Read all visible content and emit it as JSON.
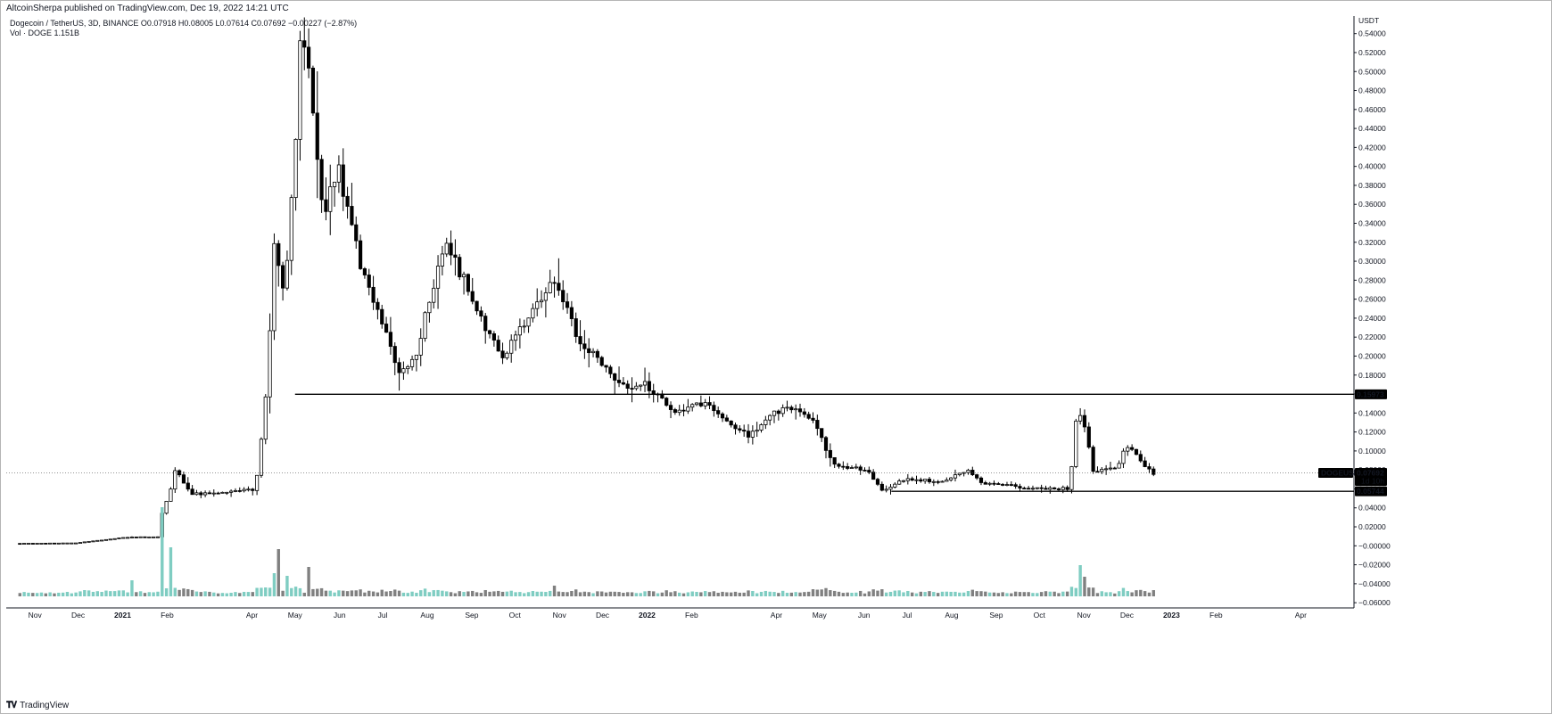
{
  "header": {
    "published": "AltcoinSherpa published on TradingView.com, Dec 19, 2022 14:21 UTC",
    "symbol_line": "Dogecoin / TetherUS, 3D, BINANCE  O0.07918 H0.08005 L0.07614 C0.07692 −0.00227 (−2.87%)",
    "volume_line": "Vol · DOGE  1.151B"
  },
  "footer": {
    "brand": "TradingView",
    "logo": "tradingview-logo"
  },
  "colors": {
    "up": "#ffffff",
    "down": "#000000",
    "vol_up": "#7fcdc2",
    "vol_down": "#808080",
    "line": "#000000"
  },
  "chart_data": {
    "type": "candlestick",
    "symbol": "DOGEUSDT",
    "unit": "USDT",
    "y_ticks": [
      "0.54000",
      "0.52000",
      "0.50000",
      "0.48000",
      "0.46000",
      "0.44000",
      "0.42000",
      "0.40000",
      "0.38000",
      "0.36000",
      "0.34000",
      "0.32000",
      "0.30000",
      "0.28000",
      "0.26000",
      "0.24000",
      "0.22000",
      "0.20000",
      "0.18000",
      "0.16000",
      "0.14000",
      "0.12000",
      "0.10000",
      "0.08000",
      "0.06000",
      "0.04000",
      "0.02000",
      "−0.00000",
      "−0.02000",
      "−0.04000",
      "−0.06000"
    ],
    "ylim": [
      -0.0655,
      0.5585
    ],
    "x_ticks": [
      "Nov",
      "Dec",
      "2021",
      "Feb",
      "Apr",
      "May",
      "Jun",
      "Jul",
      "Aug",
      "Sep",
      "Oct",
      "Nov",
      "Dec",
      "2022",
      "Feb",
      "Apr",
      "May",
      "Jun",
      "Jul",
      "Aug",
      "Sep",
      "Oct",
      "Nov",
      "Dec",
      "2023",
      "Feb",
      "Apr"
    ],
    "x_tick_dates": [
      "2020-11-01",
      "2020-12-01",
      "2021-01-01",
      "2021-02-01",
      "2021-04-01",
      "2021-05-01",
      "2021-06-01",
      "2021-07-01",
      "2021-08-01",
      "2021-09-01",
      "2021-10-01",
      "2021-11-01",
      "2021-12-01",
      "2022-01-01",
      "2022-02-01",
      "2022-04-01",
      "2022-05-01",
      "2022-06-01",
      "2022-07-01",
      "2022-08-01",
      "2022-09-01",
      "2022-10-01",
      "2022-11-01",
      "2022-12-01",
      "2023-01-01",
      "2023-02-01",
      "2023-04-01"
    ],
    "horizontal_levels": [
      {
        "label": "0.15973",
        "value": 0.15973,
        "from_date": "2021-05-01"
      },
      {
        "label": "0.05744",
        "value": 0.05744,
        "from_date": "2022-06-20"
      }
    ],
    "last_price": {
      "symbol": "DOGEUSDT",
      "value": "0.07692",
      "countdown": "1d 10h"
    },
    "anchors": [
      [
        "2020-10-20",
        0.0025
      ],
      [
        "2020-12-01",
        0.003
      ],
      [
        "2021-01-05",
        0.009
      ],
      [
        "2021-01-27",
        0.0095
      ],
      [
        "2021-01-29",
        0.03
      ],
      [
        "2021-02-05",
        0.06
      ],
      [
        "2021-02-08",
        0.08
      ],
      [
        "2021-02-20",
        0.055
      ],
      [
        "2021-03-10",
        0.055
      ],
      [
        "2021-04-05",
        0.06
      ],
      [
        "2021-04-14",
        0.18
      ],
      [
        "2021-04-17",
        0.32
      ],
      [
        "2021-04-25",
        0.26
      ],
      [
        "2021-05-02",
        0.4
      ],
      [
        "2021-05-07",
        0.56
      ],
      [
        "2021-05-14",
        0.48
      ],
      [
        "2021-05-22",
        0.35
      ],
      [
        "2021-06-01",
        0.4
      ],
      [
        "2021-06-18",
        0.29
      ],
      [
        "2021-06-30",
        0.24
      ],
      [
        "2021-07-15",
        0.18
      ],
      [
        "2021-07-25",
        0.2
      ],
      [
        "2021-08-15",
        0.32
      ],
      [
        "2021-08-25",
        0.29
      ],
      [
        "2021-09-08",
        0.24
      ],
      [
        "2021-09-25",
        0.2
      ],
      [
        "2021-10-15",
        0.25
      ],
      [
        "2021-10-31",
        0.28
      ],
      [
        "2021-11-15",
        0.22
      ],
      [
        "2021-11-28",
        0.2
      ],
      [
        "2021-12-15",
        0.17
      ],
      [
        "2022-01-01",
        0.17
      ],
      [
        "2022-01-22",
        0.14
      ],
      [
        "2022-02-10",
        0.15
      ],
      [
        "2022-03-01",
        0.13
      ],
      [
        "2022-03-15",
        0.115
      ],
      [
        "2022-03-30",
        0.14
      ],
      [
        "2022-04-12",
        0.145
      ],
      [
        "2022-04-28",
        0.135
      ],
      [
        "2022-05-12",
        0.085
      ],
      [
        "2022-06-05",
        0.08
      ],
      [
        "2022-06-15",
        0.058
      ],
      [
        "2022-07-01",
        0.07
      ],
      [
        "2022-07-25",
        0.068
      ],
      [
        "2022-08-14",
        0.08
      ],
      [
        "2022-08-25",
        0.065
      ],
      [
        "2022-09-30",
        0.061
      ],
      [
        "2022-10-24",
        0.06
      ],
      [
        "2022-10-27",
        0.13
      ],
      [
        "2022-11-01",
        0.14
      ],
      [
        "2022-11-09",
        0.08
      ],
      [
        "2022-11-25",
        0.08
      ],
      [
        "2022-12-01",
        0.105
      ],
      [
        "2022-12-08",
        0.1
      ],
      [
        "2022-12-19",
        0.07692
      ]
    ],
    "volume_spikes": [
      [
        "2021-01-05",
        0.18
      ],
      [
        "2021-01-28",
        1.0
      ],
      [
        "2021-02-01",
        0.55
      ],
      [
        "2021-04-16",
        0.26
      ],
      [
        "2021-04-19",
        0.53
      ],
      [
        "2021-04-25",
        0.23
      ],
      [
        "2021-05-10",
        0.33
      ],
      [
        "2021-10-28",
        0.12
      ],
      [
        "2022-04-26",
        0.08
      ],
      [
        "2022-10-28",
        0.35
      ],
      [
        "2022-10-31",
        0.22
      ]
    ]
  }
}
